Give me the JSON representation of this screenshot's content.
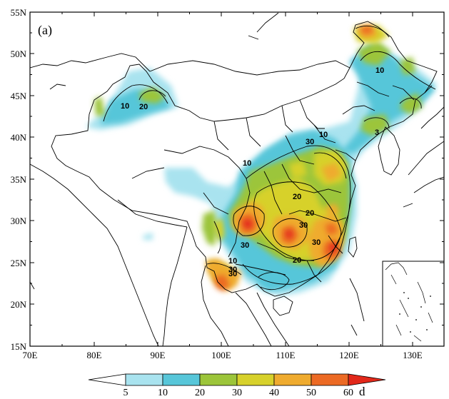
{
  "panel_label": "(a)",
  "axes": {
    "x_ticks": [
      "70E",
      "80E",
      "90E",
      "100E",
      "110E",
      "120E",
      "130E"
    ],
    "y_ticks": [
      "55N",
      "50N",
      "45N",
      "40N",
      "35N",
      "30N",
      "25N",
      "20N",
      "15N"
    ]
  },
  "colorbar": {
    "ticks": [
      "5",
      "10",
      "20",
      "30",
      "40",
      "50",
      "60"
    ],
    "unit": "d",
    "colors": [
      "#ffffff",
      "#a9e3ef",
      "#57c6d9",
      "#9cc53a",
      "#d7d12b",
      "#efab2f",
      "#ec6a24",
      "#e2281a"
    ]
  },
  "contour_labels": [
    "10",
    "20",
    "10",
    "30",
    "10",
    "20",
    "20",
    "30",
    "30",
    "30",
    "10",
    "30",
    "30",
    "20",
    "10",
    "3"
  ]
}
